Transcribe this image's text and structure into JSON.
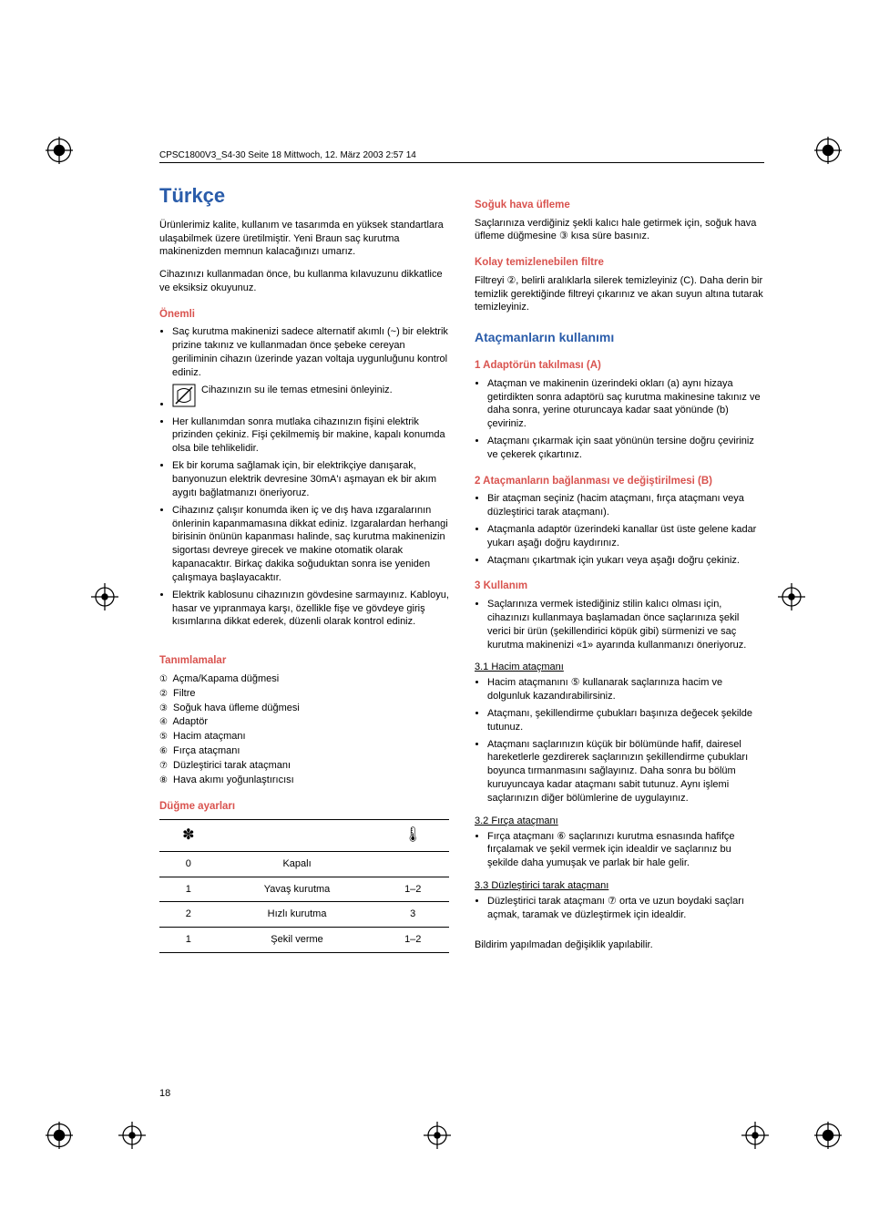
{
  "header": "CPSC1800V3_S4-30  Seite 18  Mittwoch, 12. März 2003  2:57 14",
  "title": "Türkçe",
  "intro1": "Ürünlerimiz kalite, kullanım ve tasarımda en yüksek standartlara ulaşabilmek üzere  üretilmiştir. Yeni Braun saç kurutma makinenizden memnun kalacağınızı umarız.",
  "intro2": "Cihazınızı kullanmadan önce, bu kullanma kılavuzunu dikkatlice ve eksiksiz okuyunuz.",
  "s_important": "Önemli",
  "imp": [
    "Saç kurutma makinenizi sadece alternatif akımlı (~) bir elektrik prizine takınız ve kullanmadan önce  şebeke cereyan geriliminin cihazın üzerinde yazan voltaja uygunluğunu kontrol ediniz.",
    "Cihazınızın su ile temas etmesini önleyiniz.",
    "Her kullanımdan sonra mutlaka cihazınızın fişini elektrik prizinden çekiniz. Fişi çekilmemiş bir makine, kapalı  konumda olsa bile tehlikelidir.",
    "Ek bir koruma sağlamak için,  bir elektrikçiye danışarak, banyonuzun elektrik devresine 30mA'ı aşmayan ek bir akım aygıtı bağlatmanızı öneriyoruz.",
    "Cihazınız çalışır konumda iken iç ve dış hava ızgaralarının önlerinin kapanmamasına dikkat ediniz. Izgaralardan herhangi birisinin önünün kapanması  halinde, saç kurutma makinenizin sigortası devreye girecek ve makine  otomatik olarak kapanacaktır. Birkaç dakika soğuduktan sonra ise yeniden  çalışmaya başlayacaktır.",
    "Elektrik kablosunu cihazınızın gövdesine sarmayınız. Kabloyu, hasar ve yıpranmaya karşı, özellikle fişe ve gövdeye giriş kısımlarına dikkat ederek, düzenli olarak kontrol ediniz."
  ],
  "s_defs": "Tanımlamalar",
  "defs": [
    "Açma/Kapama düğmesi",
    "Filtre",
    "Soğuk hava üfleme düğmesi",
    "Adaptör",
    "Hacim ataçmanı",
    "Fırça ataçmanı",
    "Düzleştirici tarak ataçmanı",
    "Hava akımı yoğunlaştırıcısı"
  ],
  "circled": [
    "①",
    "②",
    "③",
    "④",
    "⑤",
    "⑥",
    "⑦",
    "⑧"
  ],
  "s_settings": "Düğme ayarları",
  "settings": {
    "fan_icon": "✽",
    "heat_icon": "🌡",
    "rows": [
      {
        "a": "0",
        "b": "Kapalı",
        "c": ""
      },
      {
        "a": "1",
        "b": "Yavaş kurutma",
        "c": "1–2"
      },
      {
        "a": "2",
        "b": "Hızlı kurutma",
        "c": "3"
      },
      {
        "a": "1",
        "b": "Şekil verme",
        "c": "1–2"
      }
    ]
  },
  "s_cold": "Soğuk hava üfleme",
  "cold_text": "Saçlarınıza verdiğiniz şekli kalıcı hale getirmek için, soğuk hava üfleme düğmesine ③ kısa süre basınız.",
  "s_filter": "Kolay temizlenebilen filtre",
  "filter_text": "Filtreyi ②, belirli aralıklarla silerek temizleyiniz (C). Daha derin bir temizlik gerektiğinde filtreyi çıkarınız ve akan suyun altına tutarak temizleyiniz.",
  "s_attach": "Ataçmanların kullanımı",
  "s_a1": "1  Adaptörün takılması (A)",
  "a1": [
    "Ataçman ve makinenin üzerindeki okları (a) aynı hizaya getirdikten   sonra adaptörü saç kurutma makinesine takınız ve daha sonra, yerine oturuncaya kadar saat yönünde (b) çeviriniz.",
    "Ataçmanı çıkarmak için saat yönünün tersine doğru çeviriniz ve çekerek çıkartınız."
  ],
  "s_a2": "2  Ataçmanların bağlanması ve değiştirilmesi (B)",
  "a2": [
    "Bir ataçman seçiniz (hacim ataçmanı, fırça ataçmanı veya düzleştirici tarak ataçmanı).",
    "Ataçmanla adaptör üzerindeki kanallar üst üste gelene kadar yukarı aşağı doğru kaydırınız.",
    "Ataçmanı çıkartmak için yukarı veya aşağı doğru çekiniz."
  ],
  "s_a3": "3  Kullanım",
  "a3": [
    "Saçlarınıza vermek istediğiniz stilin kalıcı olması için, cihazınızı kullanmaya başlamadan önce saçlarınıza şekil verici bir ürün (şekillendirici köpük gibi) sürmenizi ve saç kurutma makinenizi «1» ayarında kullanmanızı öneriyoruz."
  ],
  "s31": "3.1 Hacim ataçmanı",
  "p31": [
    "Hacim ataçmanını ⑤ kullanarak saçlarınıza hacim ve dolgunluk kazandırabilirsiniz.",
    "Ataçmanı, şekillendirme çubukları başınıza değecek şekilde tutunuz.",
    "Ataçmanı saçlarınızın küçük bir bölümünde hafif, dairesel hareketlerle gezdirerek saçlarınızın şekillendirme çubukları boyunca tırmanmasını sağlayınız. Daha sonra bu  bölüm kuruyuncaya kadar ataçmanı sabit tutunuz. Aynı işlemi saçlarınızın diğer bölümlerine de uygulayınız."
  ],
  "s32": "3.2 Fırça ataçmanı",
  "p32": [
    "Fırça ataçmanı ⑥ saçlarınızı kurutma esnasında hafifçe fırçalamak ve şekil vermek için idealdir ve saçlarınız bu şekilde daha yumuşak ve parlak bir hale gelir."
  ],
  "s33": "3.3 Düzleştirici tarak ataçmanı",
  "p33": [
    "Düzleştirici tarak ataçmanı ⑦ orta ve uzun boydaki saçları açmak, taramak ve düzleştirmek için idealdir."
  ],
  "notice": "Bildirim yapılmadan değişiklik yapılabilir.",
  "page_num": "18",
  "colors": {
    "blue": "#2a5caa",
    "red": "#d9534f",
    "text": "#000000"
  }
}
